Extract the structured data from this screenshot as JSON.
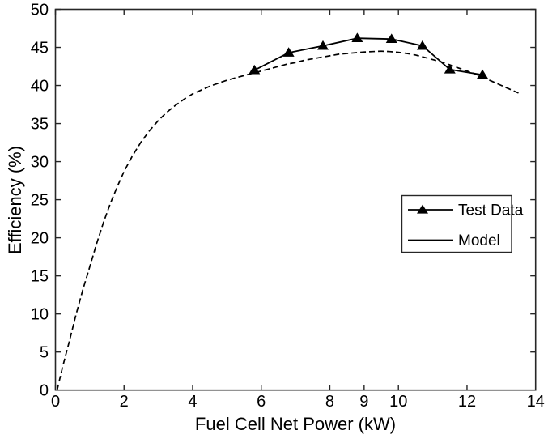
{
  "figure": {
    "background": "#ffffff",
    "axis_color": "#262626",
    "data_color": "#000000"
  },
  "chart_data": {
    "type": "line",
    "title": "",
    "xlabel": "Fuel Cell Net Power (kW)",
    "ylabel": "Efficiency (%)",
    "xlim": [
      0,
      14
    ],
    "ylim": [
      0,
      50
    ],
    "xticks": [
      "0",
      "2",
      "4",
      "6",
      "8",
      "9",
      "10",
      "12",
      "14"
    ],
    "xtick_values": [
      0,
      2,
      4,
      6,
      8,
      9,
      10,
      12,
      14
    ],
    "yticks": [
      "0",
      "5",
      "10",
      "15",
      "20",
      "25",
      "30",
      "35",
      "40",
      "45",
      "50"
    ],
    "ytick_values": [
      0,
      5,
      10,
      15,
      20,
      25,
      30,
      35,
      40,
      45,
      50
    ],
    "grid": false,
    "box": true,
    "ticks_mirrored": true,
    "legend": {
      "position": "middle-right",
      "border": true
    },
    "series": [
      {
        "name": "Test Data",
        "line_style": "solid",
        "marker": "filled-triangle-up",
        "color": "#000000",
        "x": [
          5.8,
          6.8,
          7.8,
          8.8,
          9.8,
          10.7,
          11.5,
          12.45
        ],
        "y": [
          42.0,
          44.3,
          45.2,
          46.2,
          46.1,
          45.2,
          42.1,
          41.4
        ]
      },
      {
        "name": "Model",
        "line_style": "dashed",
        "marker": "none",
        "color": "#000000",
        "x": [
          0.05,
          0.2,
          0.4,
          0.6,
          0.8,
          1.0,
          1.2,
          1.4,
          1.6,
          1.8,
          2.0,
          2.25,
          2.5,
          2.75,
          3.0,
          3.25,
          3.5,
          3.75,
          4.0,
          4.25,
          4.5,
          4.75,
          5.0,
          5.25,
          5.5,
          5.75,
          6.0,
          6.25,
          6.5,
          6.75,
          7.0,
          7.25,
          7.5,
          7.75,
          8.0,
          8.25,
          8.5,
          8.75,
          9.0,
          9.25,
          9.5,
          9.75,
          10.0,
          10.25,
          10.5,
          10.75,
          11.0,
          11.25,
          11.5,
          11.75,
          12.0,
          12.25,
          12.5,
          12.75,
          13.0,
          13.25,
          13.5
        ],
        "y": [
          0,
          2.9,
          6.3,
          9.9,
          13.2,
          16.2,
          19.2,
          22.0,
          24.5,
          26.7,
          28.7,
          30.8,
          32.6,
          34.1,
          35.4,
          36.5,
          37.4,
          38.2,
          38.9,
          39.4,
          39.9,
          40.3,
          40.7,
          41.0,
          41.3,
          41.6,
          41.9,
          42.2,
          42.5,
          42.8,
          43.0,
          43.3,
          43.5,
          43.7,
          43.9,
          44.1,
          44.2,
          44.3,
          44.4,
          44.45,
          44.5,
          44.45,
          44.35,
          44.2,
          44.0,
          43.7,
          43.4,
          43.1,
          42.7,
          42.3,
          41.9,
          41.5,
          41.0,
          40.5,
          40.0,
          39.5,
          39.0
        ]
      }
    ]
  }
}
